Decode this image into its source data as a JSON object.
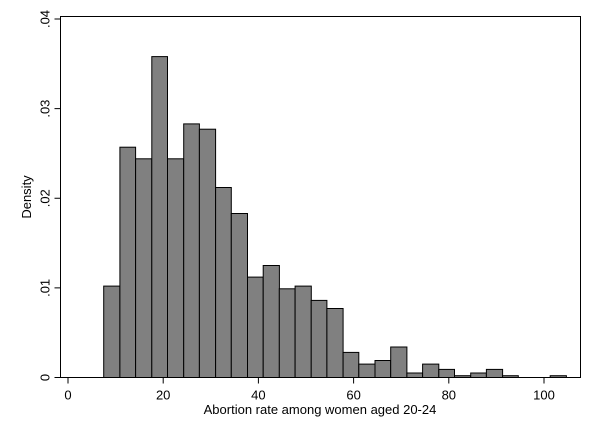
{
  "chart_data": {
    "type": "bar",
    "subtype": "histogram",
    "xlabel": "Abortion rate among women aged 20-24",
    "ylabel": "Density",
    "xlim": [
      0,
      105
    ],
    "ylim": [
      0,
      0.04
    ],
    "xticks": [
      0,
      20,
      40,
      60,
      80,
      100
    ],
    "xtick_labels": [
      "0",
      "20",
      "40",
      "60",
      "80",
      "100"
    ],
    "yticks": [
      0,
      0.01,
      0.02,
      0.03,
      0.04
    ],
    "ytick_labels": [
      "0",
      ".01",
      ".02",
      ".03",
      ".04"
    ],
    "grid": false,
    "bar_color": "#808080",
    "bins": [
      {
        "x0": 7.5,
        "x1": 10.9,
        "density": 0.0102
      },
      {
        "x0": 10.9,
        "x1": 14.2,
        "density": 0.0257
      },
      {
        "x0": 14.2,
        "x1": 17.6,
        "density": 0.0244
      },
      {
        "x0": 17.6,
        "x1": 20.9,
        "density": 0.0358
      },
      {
        "x0": 20.9,
        "x1": 24.3,
        "density": 0.0244
      },
      {
        "x0": 24.3,
        "x1": 27.6,
        "density": 0.0283
      },
      {
        "x0": 27.6,
        "x1": 31.0,
        "density": 0.0277
      },
      {
        "x0": 31.0,
        "x1": 34.3,
        "density": 0.0212
      },
      {
        "x0": 34.3,
        "x1": 37.7,
        "density": 0.0183
      },
      {
        "x0": 37.7,
        "x1": 41.0,
        "density": 0.0112
      },
      {
        "x0": 41.0,
        "x1": 44.4,
        "density": 0.0125
      },
      {
        "x0": 44.4,
        "x1": 47.7,
        "density": 0.0099
      },
      {
        "x0": 47.7,
        "x1": 51.1,
        "density": 0.0102
      },
      {
        "x0": 51.1,
        "x1": 54.4,
        "density": 0.0086
      },
      {
        "x0": 54.4,
        "x1": 57.8,
        "density": 0.0077
      },
      {
        "x0": 57.8,
        "x1": 61.1,
        "density": 0.0028
      },
      {
        "x0": 61.1,
        "x1": 64.5,
        "density": 0.0015
      },
      {
        "x0": 64.5,
        "x1": 67.8,
        "density": 0.0019
      },
      {
        "x0": 67.8,
        "x1": 71.2,
        "density": 0.0034
      },
      {
        "x0": 71.2,
        "x1": 74.5,
        "density": 0.0005
      },
      {
        "x0": 74.5,
        "x1": 77.9,
        "density": 0.0015
      },
      {
        "x0": 77.9,
        "x1": 81.2,
        "density": 0.0009
      },
      {
        "x0": 81.2,
        "x1": 84.6,
        "density": 0.0002
      },
      {
        "x0": 84.6,
        "x1": 87.9,
        "density": 0.0005
      },
      {
        "x0": 87.9,
        "x1": 91.3,
        "density": 0.0009
      },
      {
        "x0": 91.3,
        "x1": 94.6,
        "density": 0.0002
      },
      {
        "x0": 94.6,
        "x1": 98.0,
        "density": 0
      },
      {
        "x0": 98.0,
        "x1": 101.3,
        "density": 0
      },
      {
        "x0": 101.3,
        "x1": 104.7,
        "density": 0.0002
      }
    ]
  }
}
